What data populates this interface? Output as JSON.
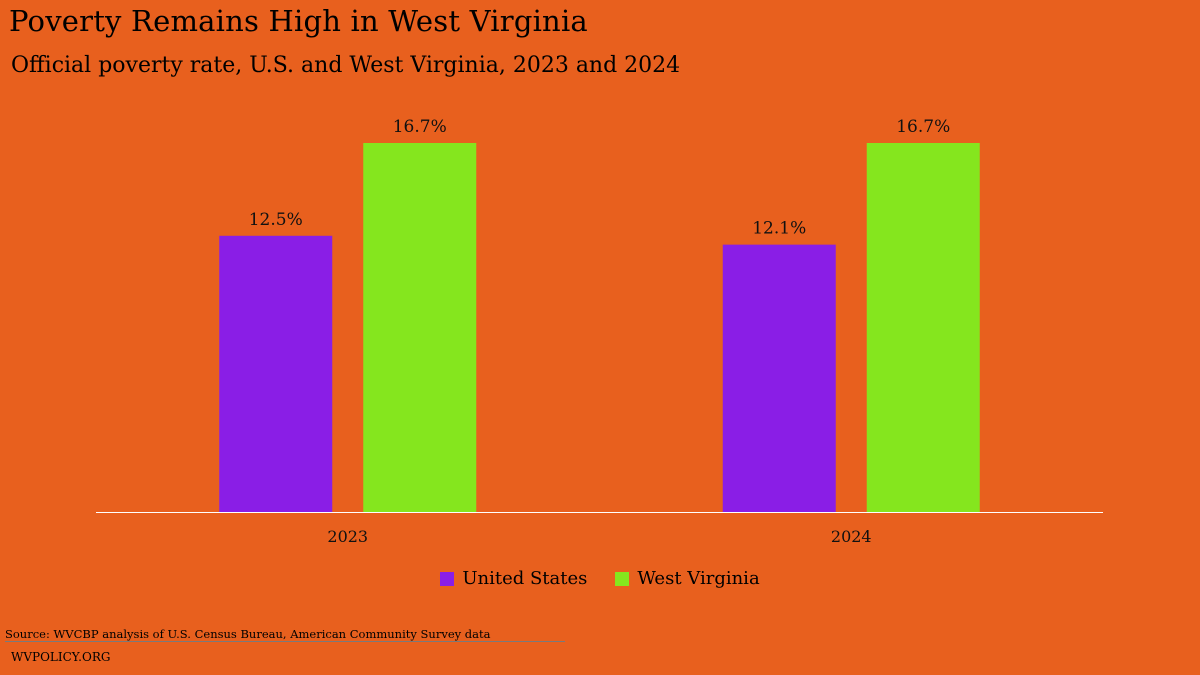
{
  "title": "Poverty Remains High in West Virginia",
  "subtitle": "Official poverty rate, U.S. and West Virginia, 2023 and 2024",
  "source": "Source: WVCBP analysis of U.S. Census Bureau, American Community Survey data",
  "footer": "WVPOLICY.ORG",
  "colors": {
    "background": "#E8601E",
    "united_states": "#8A1EE6",
    "west_virginia": "#85E61E",
    "axis": "#ffffff"
  },
  "chart_data": {
    "type": "bar",
    "categories": [
      "2023",
      "2024"
    ],
    "series": [
      {
        "name": "United States",
        "values": [
          12.5,
          12.1
        ],
        "labels": [
          "12.5%",
          "12.1%"
        ],
        "color": "#8A1EE6"
      },
      {
        "name": "West Virginia",
        "values": [
          16.7,
          16.7
        ],
        "labels": [
          "16.7%",
          "16.7%"
        ],
        "color": "#85E61E"
      }
    ],
    "title": "Poverty Remains High in West Virginia",
    "subtitle": "Official poverty rate, U.S. and West Virginia, 2023 and 2024",
    "xlabel": "",
    "ylabel": "",
    "ylim": [
      0,
      16.7
    ],
    "grid": false,
    "legend": "bottom"
  }
}
